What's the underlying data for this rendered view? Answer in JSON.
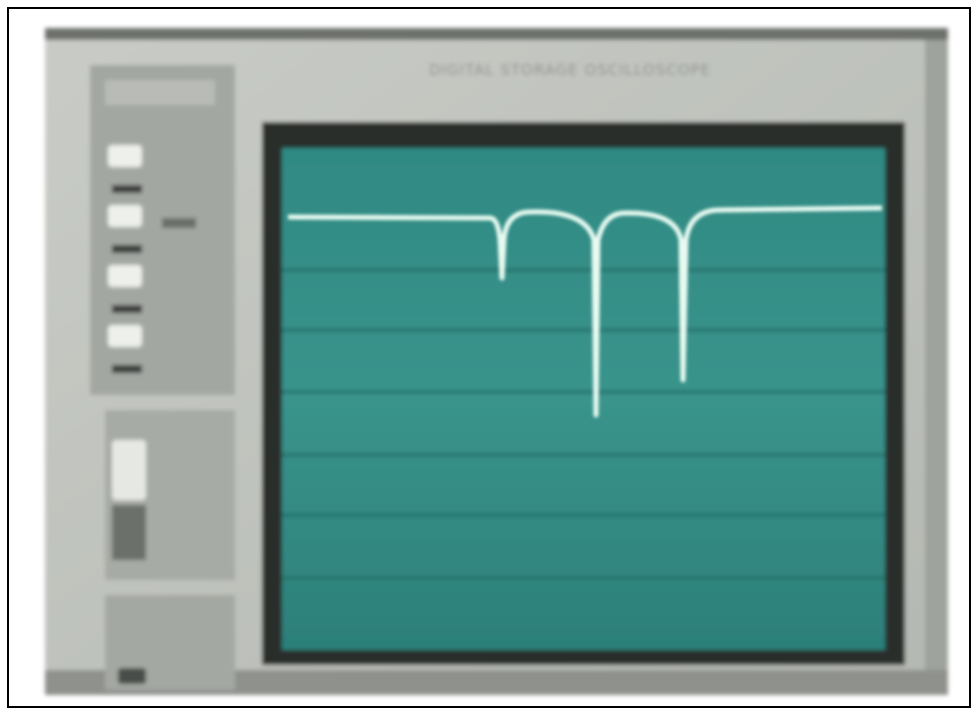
{
  "header": {
    "title": "DIGITAL STORAGE OSCILLOSCOPE"
  }
}
